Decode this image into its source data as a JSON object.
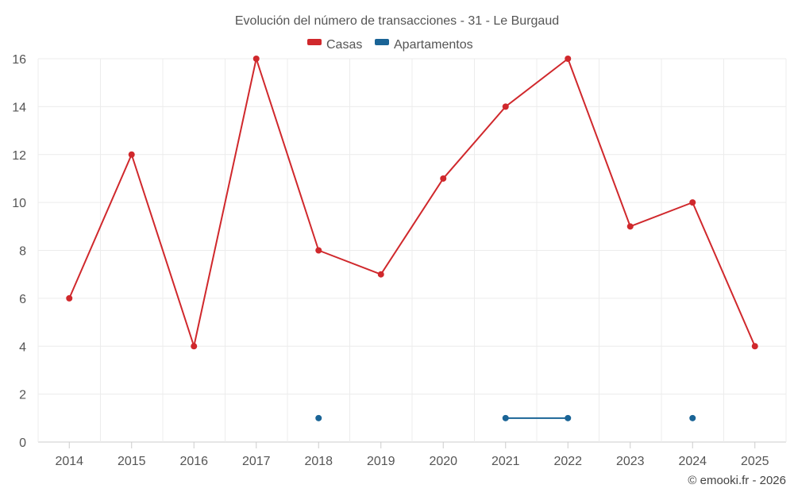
{
  "chart_data": {
    "type": "line",
    "title": "Evolución del número de transacciones - 31 - Le Burgaud",
    "x": [
      "2014",
      "2015",
      "2016",
      "2017",
      "2018",
      "2019",
      "2020",
      "2021",
      "2022",
      "2023",
      "2024",
      "2025"
    ],
    "ylim": [
      0,
      16
    ],
    "yticks": [
      0,
      2,
      4,
      6,
      8,
      10,
      12,
      14,
      16
    ],
    "grid": true,
    "legend_position": "top-center",
    "series": [
      {
        "name": "Casas",
        "color": "#d0282c",
        "values": [
          6,
          12,
          4,
          16,
          8,
          7,
          11,
          14,
          16,
          9,
          10,
          4
        ]
      },
      {
        "name": "Apartamentos",
        "color": "#1a6496",
        "values": [
          null,
          null,
          null,
          null,
          1,
          null,
          null,
          1,
          1,
          null,
          1,
          null
        ]
      }
    ]
  },
  "credit": "© emooki.fr - 2026"
}
